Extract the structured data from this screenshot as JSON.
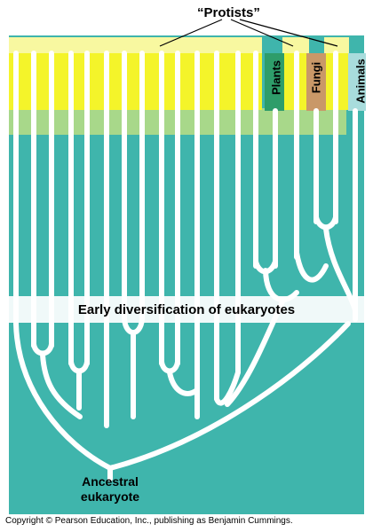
{
  "labels": {
    "protists": "“Protists”",
    "plants": "Plants",
    "fungi": "Fungi",
    "animals": "Animals",
    "early": "Early diversification of eukaryotes",
    "ancestral": "Ancestral eukaryote",
    "copyright": "Copyright © Pearson Education, Inc., publishing as Benjamin Cummings."
  },
  "colors": {
    "teal": "#3fb5ac",
    "yellow": "#f4f42a",
    "pale_yellow": "#f8f8a0",
    "light_green": "#a8d88a",
    "plants": "#2e9d6a",
    "fungi": "#c99868",
    "animals": "#a8dcdc",
    "band": "#ffffff",
    "branch": "#ffffff"
  }
}
